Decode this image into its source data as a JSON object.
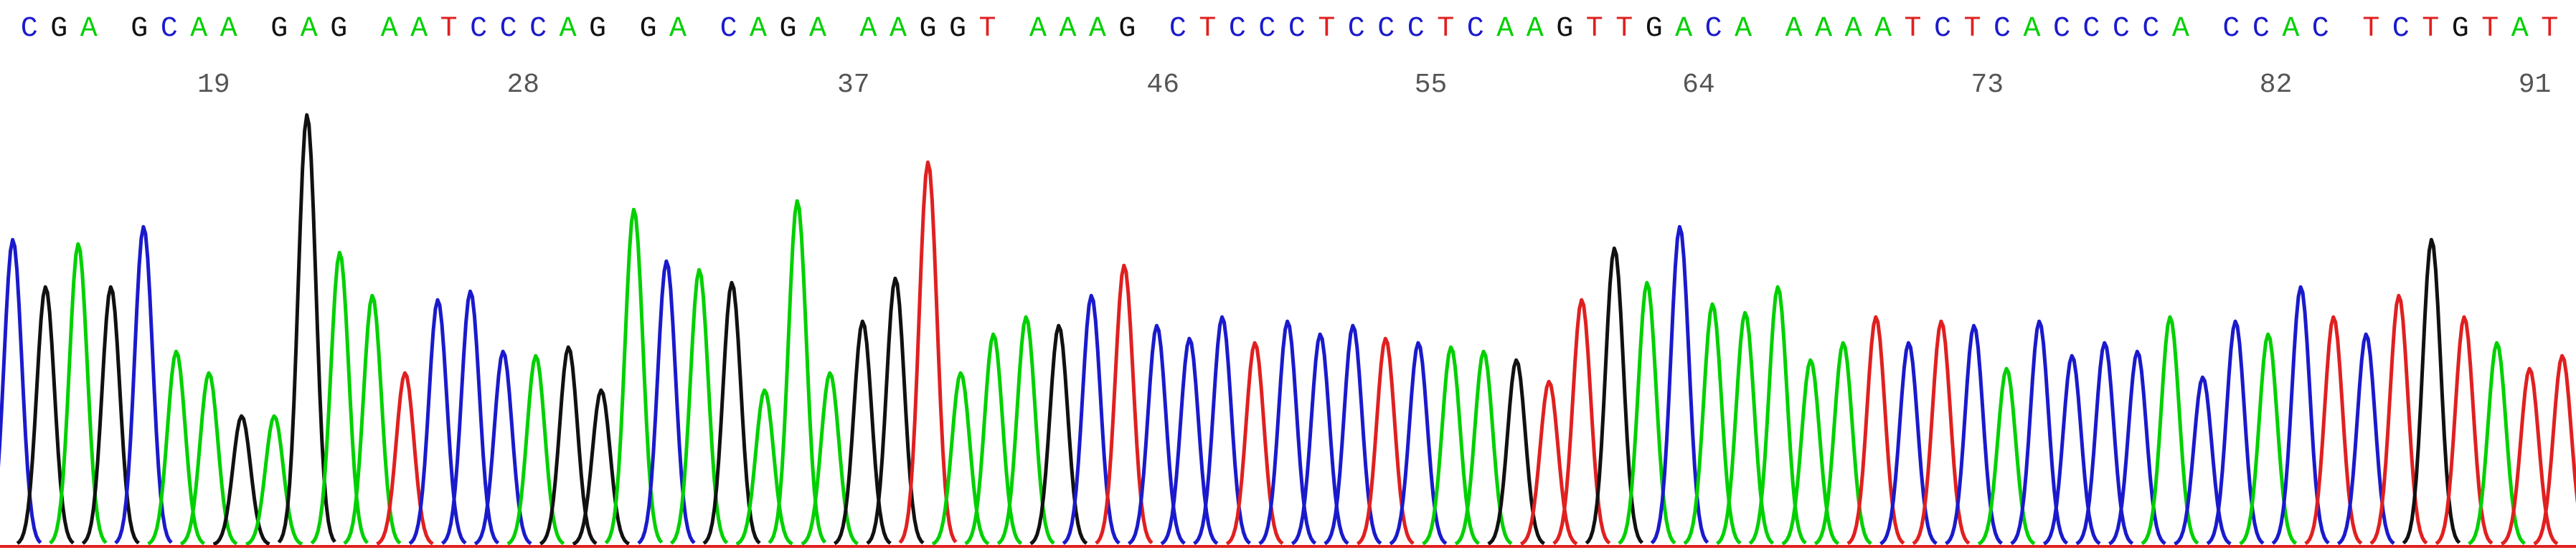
{
  "sequence": {
    "bases": [
      "C",
      "G",
      "A",
      "G",
      "C",
      "A",
      "A",
      "G",
      "A",
      "G",
      "A",
      "A",
      "T",
      "C",
      "C",
      "C",
      "A",
      "G",
      "G",
      "A",
      "C",
      "A",
      "G",
      "A",
      "A",
      "A",
      "G",
      "G",
      "T",
      "A",
      "A",
      "A",
      "G",
      "C",
      "T",
      "C",
      "C",
      "C",
      "T",
      "C",
      "C",
      "C",
      "T",
      "C",
      "A",
      "A",
      "G",
      "T",
      "T",
      "G",
      "A",
      "C",
      "A",
      "A",
      "A",
      "A",
      "A",
      "T",
      "C",
      "T",
      "C",
      "A",
      "C",
      "C",
      "C",
      "C",
      "A",
      "C",
      "C",
      "A",
      "C",
      "T",
      "C",
      "T",
      "G",
      "T",
      "A",
      "T"
    ],
    "gaps_before": [
      3,
      7,
      10,
      18,
      20,
      24,
      29,
      33,
      53,
      67,
      71
    ],
    "position_labels": [
      {
        "label": "19",
        "after_base": 6
      },
      {
        "label": "28",
        "after_base": 15
      },
      {
        "label": "37",
        "after_base": 24
      },
      {
        "label": "46",
        "after_base": 33
      },
      {
        "label": "55",
        "after_base": 42
      },
      {
        "label": "64",
        "after_base": 51
      },
      {
        "label": "73",
        "after_base": 60
      },
      {
        "label": "82",
        "after_base": 69
      },
      {
        "label": "91",
        "after_base": 78
      }
    ]
  },
  "colors": {
    "A": "#00d000",
    "C": "#1a1acc",
    "G": "#111111",
    "T": "#e02020"
  },
  "trace_heights": [
    0.71,
    0.6,
    0.7,
    0.6,
    0.74,
    0.45,
    0.4,
    0.3,
    0.3,
    1.0,
    0.68,
    0.58,
    0.4,
    0.57,
    0.59,
    0.45,
    0.44,
    0.46,
    0.36,
    0.78,
    0.66,
    0.64,
    0.61,
    0.36,
    0.8,
    0.4,
    0.52,
    0.62,
    0.89,
    0.4,
    0.49,
    0.53,
    0.51,
    0.58,
    0.65,
    0.51,
    0.48,
    0.53,
    0.47,
    0.52,
    0.49,
    0.51,
    0.48,
    0.47,
    0.46,
    0.45,
    0.43,
    0.38,
    0.57,
    0.69,
    0.61,
    0.74,
    0.56,
    0.54,
    0.6,
    0.43,
    0.47,
    0.53,
    0.47,
    0.52,
    0.51,
    0.41,
    0.52,
    0.44,
    0.47,
    0.45,
    0.53,
    0.39,
    0.52,
    0.49,
    0.6,
    0.53,
    0.49,
    0.58,
    0.71,
    0.53,
    0.47,
    0.41,
    0.44
  ]
}
